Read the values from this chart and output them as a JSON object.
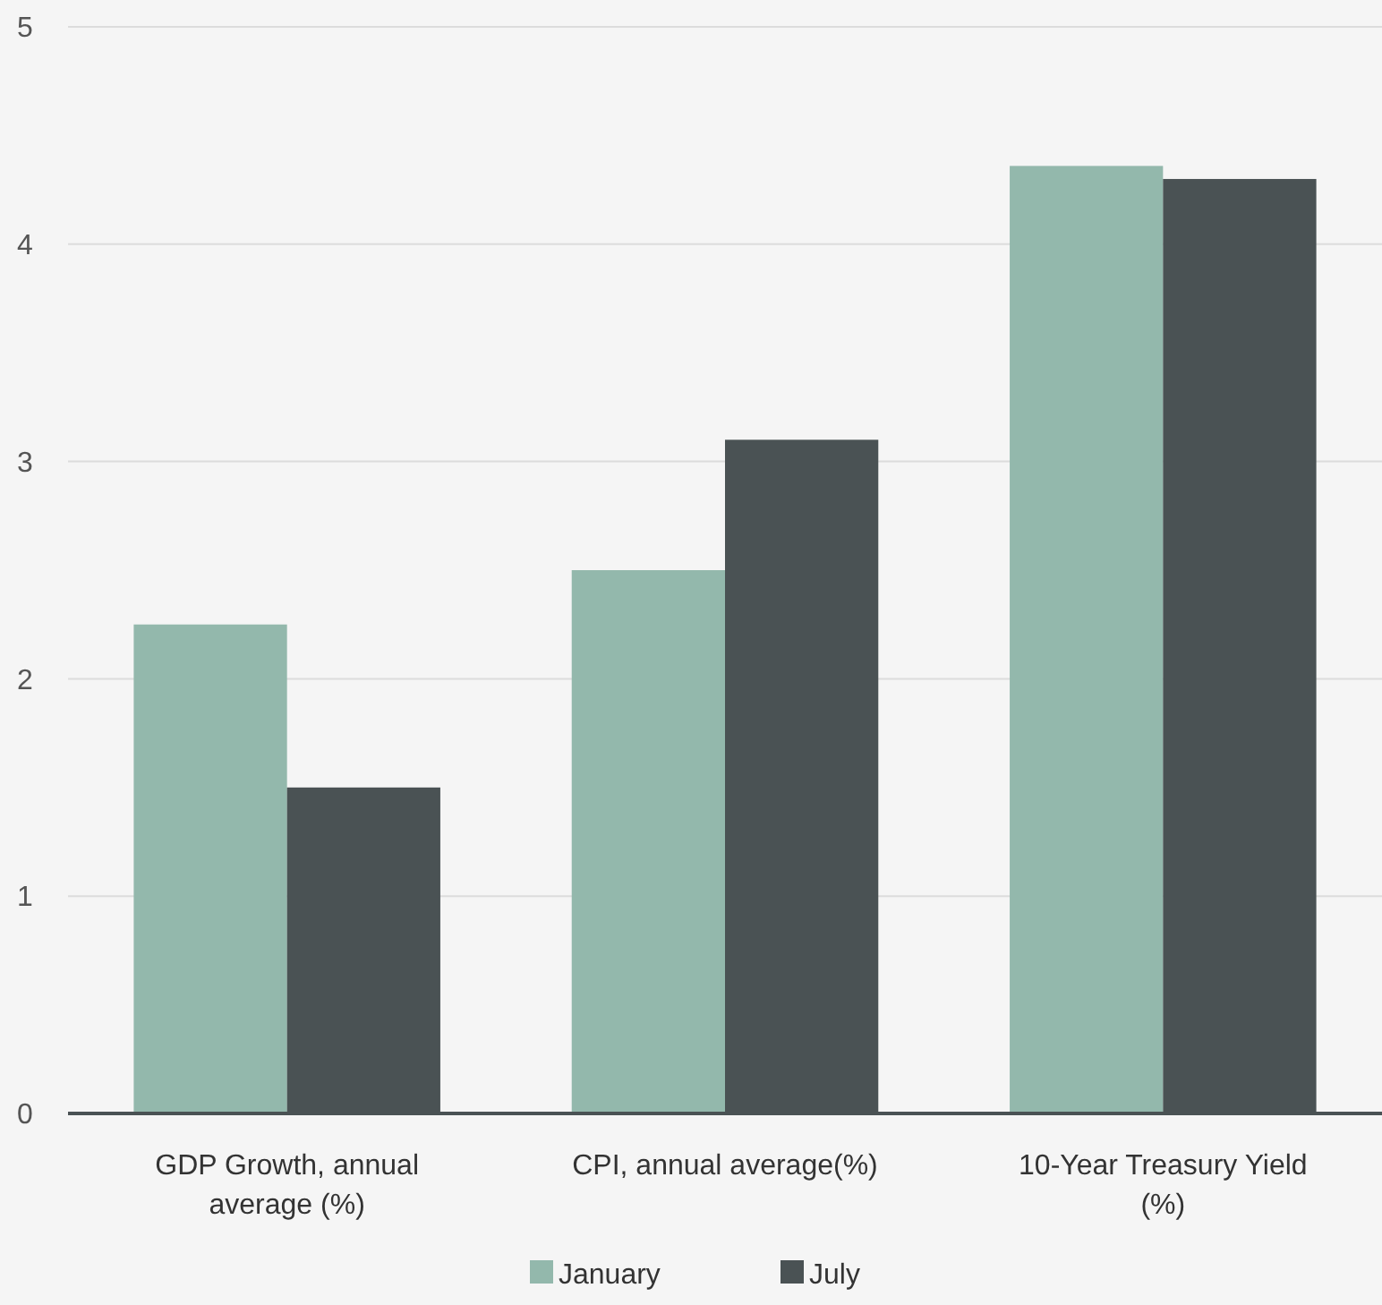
{
  "chart_data": {
    "type": "bar",
    "categories": [
      "GDP Growth, annual average (%)",
      "CPI, annual average(%)",
      "10-Year Treasury Yield (%)"
    ],
    "series": [
      {
        "name": "January",
        "color": "#93b8ac",
        "values": [
          2.25,
          2.5,
          4.36
        ]
      },
      {
        "name": "July",
        "color": "#4a5254",
        "values": [
          1.5,
          3.1,
          4.3
        ]
      }
    ],
    "ylim": [
      0,
      5
    ],
    "yticks": [
      0,
      1,
      2,
      3,
      4,
      5
    ],
    "grid": "y",
    "legend": "bottom"
  }
}
